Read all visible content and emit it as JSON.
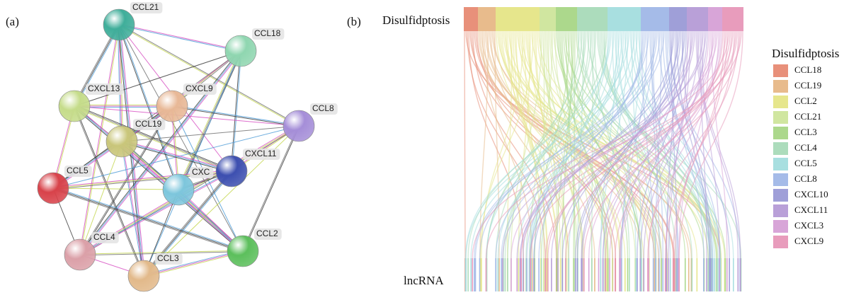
{
  "panel_a": {
    "label": "(a)",
    "nodes": [
      {
        "label": "CCL21"
      },
      {
        "label": "CCL18"
      },
      {
        "label": "CXCL13"
      },
      {
        "label": "CXCL9"
      },
      {
        "label": "CCL8"
      },
      {
        "label": "CCL19"
      },
      {
        "label": "CXCL11"
      },
      {
        "label": "CXC"
      },
      {
        "label": "CCL5"
      },
      {
        "label": "CCL2"
      },
      {
        "label": "CCL4"
      },
      {
        "label": "CCL3"
      }
    ]
  },
  "panel_b": {
    "label": "(b)",
    "top_label": "Disulfidptosis",
    "bottom_label": "lncRNA",
    "legend": {
      "title": "Disulfidptosis",
      "items": [
        {
          "name": "CCL18",
          "color": "#e8907a"
        },
        {
          "name": "CCL19",
          "color": "#e8bb8c"
        },
        {
          "name": "CCL2",
          "color": "#e6e68c"
        },
        {
          "name": "CCL21",
          "color": "#d0e6a0"
        },
        {
          "name": "CCL3",
          "color": "#acd88c"
        },
        {
          "name": "CCL4",
          "color": "#acdcbc"
        },
        {
          "name": "CCL5",
          "color": "#a8dfe0"
        },
        {
          "name": "CCL8",
          "color": "#a5bbe8"
        },
        {
          "name": "CXCL10",
          "color": "#9f9fd8"
        },
        {
          "name": "CXCL11",
          "color": "#b9a0d8"
        },
        {
          "name": "CXCL3",
          "color": "#d8a5d8"
        },
        {
          "name": "CXCL9",
          "color": "#e89cbc"
        }
      ]
    }
  }
}
